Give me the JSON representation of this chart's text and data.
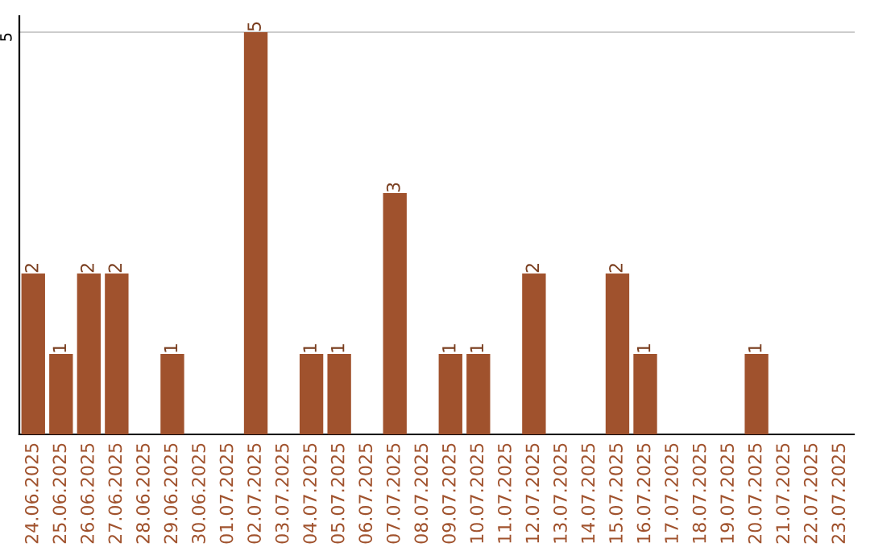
{
  "chart_data": {
    "type": "bar",
    "categories": [
      "24.06.2025",
      "25.06.2025",
      "26.06.2025",
      "27.06.2025",
      "28.06.2025",
      "29.06.2025",
      "30.06.2025",
      "01.07.2025",
      "02.07.2025",
      "03.07.2025",
      "04.07.2025",
      "05.07.2025",
      "06.07.2025",
      "07.07.2025",
      "08.07.2025",
      "09.07.2025",
      "10.07.2025",
      "11.07.2025",
      "12.07.2025",
      "13.07.2025",
      "14.07.2025",
      "15.07.2025",
      "16.07.2025",
      "17.07.2025",
      "18.07.2025",
      "19.07.2025",
      "20.07.2025",
      "21.07.2025",
      "22.07.2025",
      "23.07.2025"
    ],
    "values": [
      2,
      1,
      2,
      2,
      0,
      1,
      0,
      0,
      5,
      0,
      1,
      1,
      0,
      3,
      0,
      1,
      1,
      0,
      2,
      0,
      0,
      2,
      1,
      0,
      0,
      0,
      1,
      0,
      0,
      0
    ],
    "value_labels": [
      "2",
      "1",
      "2",
      "2",
      null,
      "1",
      null,
      null,
      "5",
      null,
      "1",
      "1",
      null,
      "3",
      null,
      "1",
      "1",
      null,
      "2",
      null,
      null,
      "2",
      "1",
      null,
      null,
      null,
      "1",
      null,
      null,
      null
    ],
    "color": "#a0522d",
    "ylim": [
      0,
      5.2
    ],
    "yticks": [
      {
        "value": 0,
        "label": null
      },
      5
    ],
    "grid": "y"
  }
}
